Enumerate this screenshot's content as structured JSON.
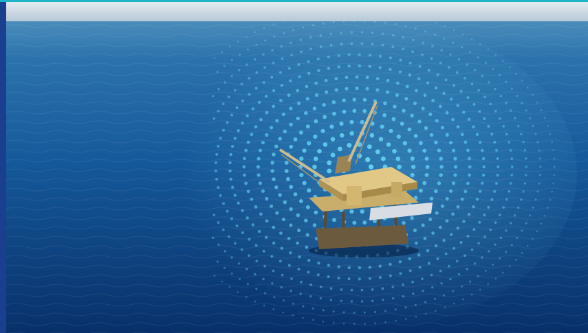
{
  "colors": {
    "accent_bar": "#1a3f8f",
    "accent_line": "#1fb5c9",
    "sky_top": "#dfe7ee",
    "sky_horizon": "#b9cbd8",
    "sea_far": "#2f78b0",
    "sea_mid": "#175a97",
    "sea_near": "#0a3570",
    "dots": "#6fe3ff",
    "platform_deck": "#d9bf7a",
    "platform_structure": "#7a6440"
  },
  "scene": {
    "subject": "offshore-oil-platform",
    "overlay": "digital-dot-burst"
  }
}
